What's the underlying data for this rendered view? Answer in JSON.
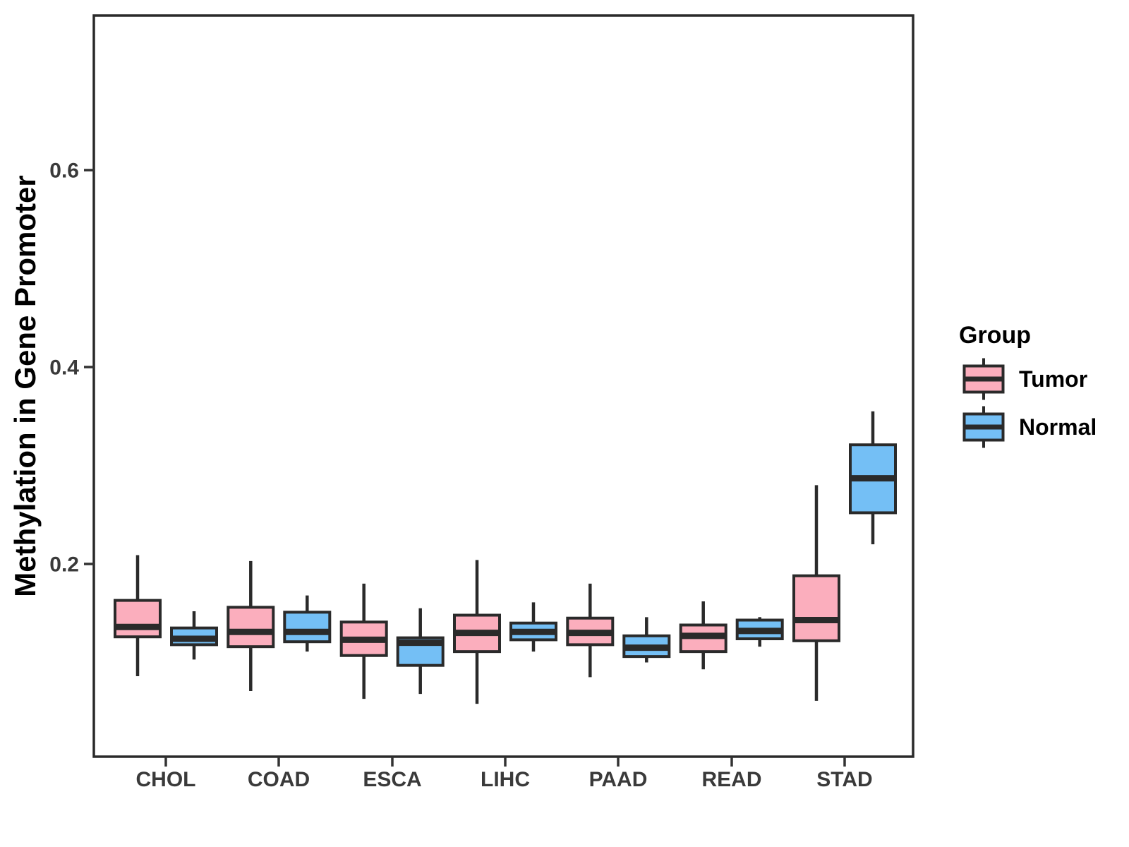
{
  "axes": {
    "y": {
      "title": "Methylation in Gene Promoter",
      "tick_labels": [
        "0.2",
        "0.4",
        "0.6"
      ]
    },
    "x": {
      "tick_labels": [
        "CHOL",
        "COAD",
        "ESCA",
        "LIHC",
        "PAAD",
        "READ",
        "STAD"
      ]
    }
  },
  "legend": {
    "title": "Group",
    "items": [
      {
        "label": "Tumor",
        "fill": "#FBAEBD"
      },
      {
        "label": "Normal",
        "fill": "#74BFF5"
      }
    ]
  },
  "chart_data": {
    "type": "boxplot",
    "title": "",
    "xlabel": "",
    "ylabel": "Methylation in Gene Promoter",
    "categories": [
      "CHOL",
      "COAD",
      "ESCA",
      "LIHC",
      "PAAD",
      "READ",
      "STAD"
    ],
    "yticks": [
      0.2,
      0.4,
      0.6
    ],
    "ytick_labels": [
      "0.2",
      "0.4",
      "0.6"
    ],
    "ylim": [
      0.004,
      0.757
    ],
    "grid": false,
    "legend_position": "right",
    "box_stroke_color": "#2A2A2A",
    "series": [
      {
        "name": "Tumor",
        "fill": "#FBAEBD",
        "stats": [
          {
            "category": "CHOL",
            "whisker_low": 0.086,
            "q1": 0.126,
            "median": 0.136,
            "q3": 0.163,
            "whisker_high": 0.209
          },
          {
            "category": "COAD",
            "whisker_low": 0.071,
            "q1": 0.116,
            "median": 0.131,
            "q3": 0.156,
            "whisker_high": 0.203
          },
          {
            "category": "ESCA",
            "whisker_low": 0.063,
            "q1": 0.107,
            "median": 0.123,
            "q3": 0.141,
            "whisker_high": 0.18
          },
          {
            "category": "LIHC",
            "whisker_low": 0.058,
            "q1": 0.111,
            "median": 0.13,
            "q3": 0.148,
            "whisker_high": 0.204
          },
          {
            "category": "PAAD",
            "whisker_low": 0.085,
            "q1": 0.118,
            "median": 0.13,
            "q3": 0.145,
            "whisker_high": 0.18
          },
          {
            "category": "READ",
            "whisker_low": 0.093,
            "q1": 0.111,
            "median": 0.127,
            "q3": 0.138,
            "whisker_high": 0.162
          },
          {
            "category": "STAD",
            "whisker_low": 0.061,
            "q1": 0.122,
            "median": 0.143,
            "q3": 0.188,
            "whisker_high": 0.28
          }
        ]
      },
      {
        "name": "Normal",
        "fill": "#74BFF5",
        "stats": [
          {
            "category": "CHOL",
            "whisker_low": 0.103,
            "q1": 0.118,
            "median": 0.124,
            "q3": 0.135,
            "whisker_high": 0.152
          },
          {
            "category": "COAD",
            "whisker_low": 0.111,
            "q1": 0.121,
            "median": 0.131,
            "q3": 0.151,
            "whisker_high": 0.168
          },
          {
            "category": "ESCA",
            "whisker_low": 0.068,
            "q1": 0.097,
            "median": 0.12,
            "q3": 0.125,
            "whisker_high": 0.155
          },
          {
            "category": "LIHC",
            "whisker_low": 0.111,
            "q1": 0.123,
            "median": 0.131,
            "q3": 0.14,
            "whisker_high": 0.161
          },
          {
            "category": "PAAD",
            "whisker_low": 0.1,
            "q1": 0.106,
            "median": 0.115,
            "q3": 0.127,
            "whisker_high": 0.146
          },
          {
            "category": "READ",
            "whisker_low": 0.116,
            "q1": 0.124,
            "median": 0.132,
            "q3": 0.143,
            "whisker_high": 0.146
          },
          {
            "category": "STAD",
            "whisker_low": 0.22,
            "q1": 0.252,
            "median": 0.287,
            "q3": 0.321,
            "whisker_high": 0.355
          }
        ]
      }
    ]
  }
}
